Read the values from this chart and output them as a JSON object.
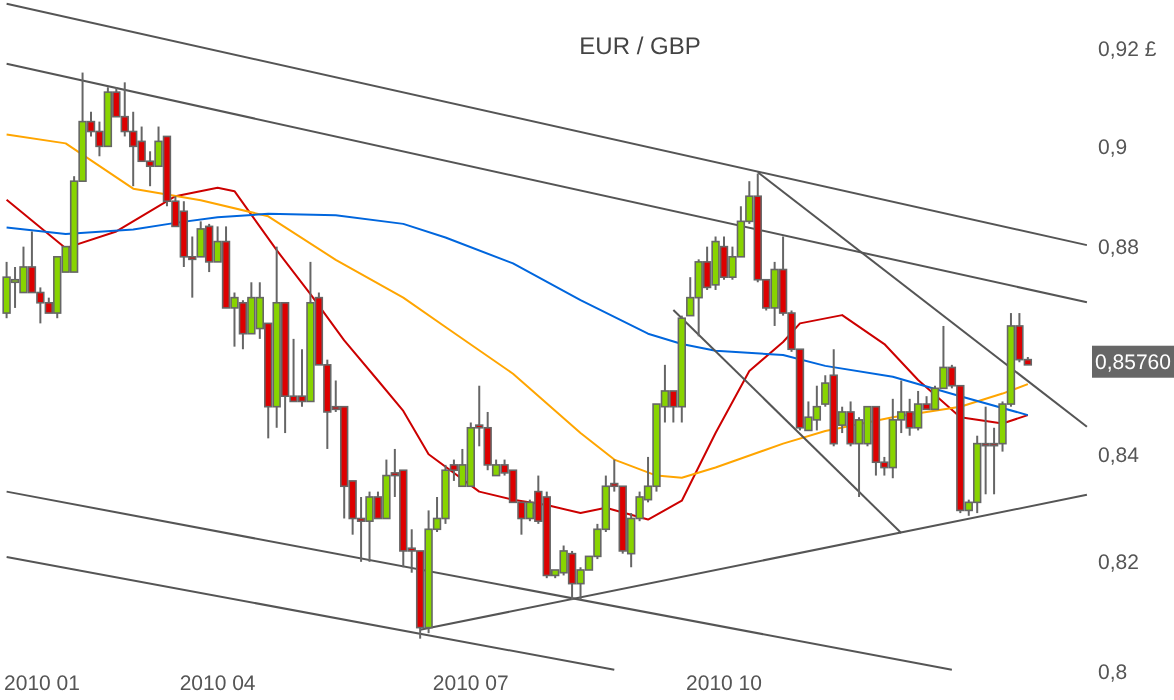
{
  "chart_data": {
    "type": "candlestick",
    "title": "EUR / GBP",
    "log": true,
    "categories": [
      null,
      null,
      null,
      null,
      "2010 01",
      null,
      null,
      null,
      null,
      null,
      null,
      null,
      null,
      null,
      null,
      null,
      null,
      null,
      null,
      null,
      null,
      null,
      null,
      null,
      null,
      "2010 04",
      null,
      null,
      null,
      null,
      null,
      null,
      null,
      null,
      null,
      null,
      null,
      null,
      null,
      null,
      null,
      null,
      null,
      null,
      null,
      null,
      null,
      null,
      null,
      null,
      null,
      null,
      null,
      null,
      null,
      "2010 07",
      null,
      null,
      null,
      null,
      null,
      null,
      null,
      null,
      null,
      null,
      null,
      null,
      null,
      null,
      null,
      null,
      null,
      null,
      null,
      null,
      null,
      null,
      null,
      null,
      null,
      null,
      null,
      null,
      null,
      "2010 10",
      null,
      null,
      null,
      null,
      null,
      null,
      null,
      null,
      null,
      null,
      null,
      null,
      null,
      null,
      null,
      null,
      null,
      null,
      null,
      null,
      null,
      null,
      null,
      null,
      null,
      null,
      null,
      null,
      null,
      null,
      null,
      null,
      null,
      null,
      null,
      null,
      null,
      null,
      null,
      null,
      null,
      null,
      null
    ],
    "ylim": [
      0.795,
      0.93
    ],
    "yticks": [
      {
        "value": 0.92,
        "label": "0,92 £"
      },
      {
        "value": 0.9,
        "label": "0,9"
      },
      {
        "value": 0.88,
        "label": "0,88"
      },
      {
        "value": 0.84,
        "label": "0,84"
      },
      {
        "value": 0.82,
        "label": "0,82"
      },
      {
        "value": 0.8,
        "label": "0,8"
      }
    ],
    "annotations": [
      {
        "text": "0,85760",
        "y": 0.8576
      }
    ],
    "ohlc": [
      [
        0.867,
        0.877,
        0.866,
        0.874
      ],
      [
        0.8735,
        0.876,
        0.868,
        0.873
      ],
      [
        0.871,
        0.88,
        0.871,
        0.876
      ],
      [
        0.876,
        0.883,
        0.871,
        0.871
      ],
      [
        0.871,
        0.872,
        0.865,
        0.869
      ],
      [
        0.869,
        0.87,
        0.867,
        0.867
      ],
      [
        0.867,
        0.878,
        0.866,
        0.878
      ],
      [
        0.875,
        0.88,
        0.875,
        0.88
      ],
      [
        0.875,
        0.894,
        0.875,
        0.893
      ],
      [
        0.893,
        0.915,
        0.893,
        0.905
      ],
      [
        0.905,
        0.907,
        0.902,
        0.903
      ],
      [
        0.903,
        0.905,
        0.898,
        0.9
      ],
      [
        0.9,
        0.912,
        0.9,
        0.911
      ],
      [
        0.911,
        0.912,
        0.906,
        0.906
      ],
      [
        0.906,
        0.913,
        0.902,
        0.903
      ],
      [
        0.903,
        0.907,
        0.892,
        0.9
      ],
      [
        0.901,
        0.904,
        0.897,
        0.897
      ],
      [
        0.897,
        0.899,
        0.892,
        0.896
      ],
      [
        0.896,
        0.904,
        0.896,
        0.901
      ],
      [
        0.902,
        0.902,
        0.888,
        0.889
      ],
      [
        0.889,
        0.89,
        0.884,
        0.884
      ],
      [
        0.887,
        0.889,
        0.876,
        0.878
      ],
      [
        0.878,
        0.882,
        0.87,
        0.8775
      ],
      [
        0.878,
        0.885,
        0.878,
        0.8835
      ],
      [
        0.884,
        0.8845,
        0.875,
        0.877
      ],
      [
        0.877,
        0.884,
        0.877,
        0.881
      ],
      [
        0.881,
        0.884,
        0.868,
        0.868
      ],
      [
        0.868,
        0.871,
        0.8605,
        0.87
      ],
      [
        0.869,
        0.8695,
        0.86,
        0.863
      ],
      [
        0.863,
        0.873,
        0.863,
        0.87
      ],
      [
        0.864,
        0.873,
        0.862,
        0.87
      ],
      [
        0.865,
        0.865,
        0.843,
        0.849
      ],
      [
        0.849,
        0.88,
        0.845,
        0.869
      ],
      [
        0.869,
        0.869,
        0.844,
        0.851
      ],
      [
        0.851,
        0.862,
        0.85,
        0.85
      ],
      [
        0.851,
        0.86,
        0.849,
        0.85
      ],
      [
        0.85,
        0.877,
        0.85,
        0.869
      ],
      [
        0.87,
        0.871,
        0.857,
        0.857
      ],
      [
        0.857,
        0.858,
        0.841,
        0.848
      ],
      [
        0.849,
        0.854,
        0.848,
        0.8485
      ],
      [
        0.849,
        0.849,
        0.828,
        0.834
      ],
      [
        0.835,
        0.835,
        0.825,
        0.828
      ],
      [
        0.828,
        0.832,
        0.82,
        0.8275
      ],
      [
        0.8275,
        0.833,
        0.82,
        0.832
      ],
      [
        0.832,
        0.833,
        0.828,
        0.828
      ],
      [
        0.828,
        0.839,
        0.828,
        0.836
      ],
      [
        0.8365,
        0.841,
        0.832,
        0.836
      ],
      [
        0.837,
        0.837,
        0.819,
        0.822
      ],
      [
        0.8225,
        0.826,
        0.818,
        0.822
      ],
      [
        0.822,
        0.822,
        0.806,
        0.808
      ],
      [
        0.808,
        0.8295,
        0.807,
        0.826
      ],
      [
        0.826,
        0.832,
        0.8255,
        0.828
      ],
      [
        0.828,
        0.838,
        0.827,
        0.837
      ],
      [
        0.838,
        0.839,
        0.835,
        0.837
      ],
      [
        0.834,
        0.841,
        0.834,
        0.838
      ],
      [
        0.834,
        0.846,
        0.834,
        0.845
      ],
      [
        0.8455,
        0.853,
        0.8415,
        0.845
      ],
      [
        0.845,
        0.848,
        0.837,
        0.838
      ],
      [
        0.836,
        0.839,
        0.836,
        0.838
      ],
      [
        0.838,
        0.839,
        0.836,
        0.8365
      ],
      [
        0.837,
        0.837,
        0.831,
        0.831
      ],
      [
        0.831,
        0.831,
        0.825,
        0.828
      ],
      [
        0.828,
        0.8315,
        0.8275,
        0.831
      ],
      [
        0.833,
        0.836,
        0.827,
        0.8275
      ],
      [
        0.832,
        0.833,
        0.817,
        0.8175
      ],
      [
        0.8175,
        0.8185,
        0.817,
        0.8185
      ],
      [
        0.818,
        0.823,
        0.8175,
        0.822
      ],
      [
        0.8215,
        0.822,
        0.813,
        0.816
      ],
      [
        0.816,
        0.819,
        0.813,
        0.8185
      ],
      [
        0.8185,
        0.821,
        0.8185,
        0.821
      ],
      [
        0.821,
        0.827,
        0.8205,
        0.826
      ],
      [
        0.826,
        0.836,
        0.8255,
        0.834
      ],
      [
        0.8345,
        0.839,
        0.833,
        0.834
      ],
      [
        0.834,
        0.834,
        0.8215,
        0.822
      ],
      [
        0.8215,
        0.829,
        0.819,
        0.828
      ],
      [
        0.828,
        0.833,
        0.8275,
        0.832
      ],
      [
        0.8315,
        0.8395,
        0.831,
        0.834
      ],
      [
        0.834,
        0.8495,
        0.833,
        0.8495
      ],
      [
        0.849,
        0.857,
        0.846,
        0.852
      ],
      [
        0.852,
        0.852,
        0.846,
        0.849
      ],
      [
        0.849,
        0.8665,
        0.846,
        0.866
      ],
      [
        0.8665,
        0.874,
        0.8665,
        0.87
      ],
      [
        0.87,
        0.8775,
        0.8625,
        0.877
      ],
      [
        0.877,
        0.88,
        0.8715,
        0.872
      ],
      [
        0.8725,
        0.882,
        0.8715,
        0.881
      ],
      [
        0.88,
        0.882,
        0.8735,
        0.874
      ],
      [
        0.874,
        0.88,
        0.8735,
        0.878
      ],
      [
        0.878,
        0.888,
        0.878,
        0.885
      ],
      [
        0.885,
        0.893,
        0.8845,
        0.89
      ],
      [
        0.89,
        0.8945,
        0.873,
        0.8735
      ],
      [
        0.8735,
        0.8735,
        0.8675,
        0.868
      ],
      [
        0.868,
        0.877,
        0.8645,
        0.8755
      ],
      [
        0.8755,
        0.882,
        0.8665,
        0.867
      ],
      [
        0.867,
        0.8675,
        0.8595,
        0.86
      ],
      [
        0.86,
        0.86,
        0.8445,
        0.845
      ],
      [
        0.8445,
        0.85,
        0.8445,
        0.847
      ],
      [
        0.8465,
        0.853,
        0.8445,
        0.849
      ],
      [
        0.8495,
        0.855,
        0.849,
        0.8535
      ],
      [
        0.855,
        0.86,
        0.8415,
        0.842
      ],
      [
        0.8455,
        0.849,
        0.844,
        0.848
      ],
      [
        0.848,
        0.85,
        0.8415,
        0.842
      ],
      [
        0.842,
        0.847,
        0.832,
        0.8465
      ],
      [
        0.842,
        0.849,
        0.8415,
        0.849
      ],
      [
        0.849,
        0.849,
        0.836,
        0.8385
      ],
      [
        0.8385,
        0.8395,
        0.836,
        0.8375
      ],
      [
        0.8375,
        0.8505,
        0.8355,
        0.8465
      ],
      [
        0.8465,
        0.854,
        0.844,
        0.848
      ],
      [
        0.848,
        0.8505,
        0.8435,
        0.845
      ],
      [
        0.845,
        0.852,
        0.8445,
        0.8495
      ],
      [
        0.8495,
        0.851,
        0.8485,
        0.8485
      ],
      [
        0.8485,
        0.853,
        0.8485,
        0.8525
      ],
      [
        0.8525,
        0.8645,
        0.8525,
        0.8565
      ],
      [
        0.8565,
        0.857,
        0.8525,
        0.853
      ],
      [
        0.853,
        0.853,
        0.829,
        0.8295
      ],
      [
        0.8295,
        0.8315,
        0.8285,
        0.831
      ],
      [
        0.831,
        0.8435,
        0.829,
        0.842
      ],
      [
        0.842,
        0.849,
        0.8325,
        0.8418
      ],
      [
        0.842,
        0.845,
        0.8325,
        0.8418
      ],
      [
        0.842,
        0.85,
        0.8405,
        0.8495
      ],
      [
        0.8495,
        0.867,
        0.849,
        0.8645
      ],
      [
        0.8645,
        0.867,
        0.8575,
        0.858
      ],
      [
        0.858,
        0.8585,
        0.857,
        0.857
      ],
      null,
      null,
      null,
      null,
      null,
      null,
      null
    ],
    "colors": [
      "#88d400",
      "#88d400",
      "#88d400",
      "#dd0000",
      "#dd0000",
      "#dd0000",
      "#88d400",
      "#88d400",
      "#88d400",
      "#88d400",
      "#dd0000",
      "#dd0000",
      "#88d400",
      "#dd0000",
      "#dd0000",
      "#dd0000",
      "#dd0000",
      "#dd0000",
      "#88d400",
      "#dd0000",
      "#dd0000",
      "#dd0000",
      "#dd0000",
      "#88d400",
      "#dd0000",
      "#88d400",
      "#dd0000",
      "#88d400",
      "#dd0000",
      "#88d400",
      "#88d400",
      "#dd0000",
      "#88d400",
      "#dd0000",
      "#dd0000",
      "#dd0000",
      "#88d400",
      "#dd0000",
      "#dd0000",
      "#dd0000",
      "#dd0000",
      "#dd0000",
      "#dd0000",
      "#88d400",
      "#dd0000",
      "#88d400",
      "#dd0000",
      "#dd0000",
      "#dd0000",
      "#dd0000",
      "#88d400",
      "#88d400",
      "#88d400",
      "#dd0000",
      "#88d400",
      "#88d400",
      "#dd0000",
      "#dd0000",
      "#88d400",
      "#dd0000",
      "#dd0000",
      "#dd0000",
      "#88d400",
      "#dd0000",
      "#dd0000",
      "#88d400",
      "#88d400",
      "#dd0000",
      "#88d400",
      "#88d400",
      "#88d400",
      "#88d400",
      "#dd0000",
      "#dd0000",
      "#88d400",
      "#88d400",
      "#88d400",
      "#88d400",
      "#88d400",
      "#dd0000",
      "#88d400",
      "#88d400",
      "#88d400",
      "#dd0000",
      "#88d400",
      "#dd0000",
      "#88d400",
      "#88d400",
      "#88d400",
      "#dd0000",
      "#dd0000",
      "#88d400",
      "#dd0000",
      "#dd0000",
      "#dd0000",
      "#88d400",
      "#88d400",
      "#88d400",
      "#dd0000",
      "#88d400",
      "#dd0000",
      "#88d400",
      "#88d400",
      "#dd0000",
      "#dd0000",
      "#88d400",
      "#88d400",
      "#dd0000",
      "#88d400",
      "#dd0000",
      "#88d400",
      "#88d400",
      "#dd0000",
      "#dd0000",
      "#88d400",
      "#88d400",
      "#dd0000",
      "#dd0000",
      "#88d400",
      "#88d400",
      "#dd0000",
      "#dd0000",
      null,
      null,
      null,
      null,
      null,
      null,
      null
    ],
    "series": [
      {
        "type": "line",
        "color": "#cc0000",
        "values": [
          0.8893,
          null,
          null,
          null,
          null,
          null,
          null,
          0.8797,
          null,
          null,
          null,
          null,
          null,
          0.883,
          null,
          null,
          null,
          null,
          null,
          null,
          0.89,
          null,
          null,
          null,
          null,
          0.8917,
          null,
          0.891,
          null,
          null,
          null,
          null,
          0.8793,
          null,
          null,
          null,
          0.8707,
          null,
          null,
          null,
          0.8617,
          null,
          null,
          null,
          0.854,
          null,
          null,
          0.8482,
          null,
          null,
          0.84,
          null,
          null,
          null,
          null,
          null,
          0.833,
          null,
          null,
          null,
          0.8315,
          null,
          null,
          null,
          0.8305,
          null,
          null,
          null,
          0.829,
          null,
          null,
          0.83,
          null,
          null,
          null,
          null,
          0.8278,
          null,
          null,
          null,
          0.8313,
          null,
          null,
          null,
          0.844,
          null,
          null,
          null,
          0.8558,
          null,
          null,
          null,
          0.8614,
          null,
          0.865,
          null,
          null,
          null,
          null,
          0.8666,
          null,
          null,
          null,
          null,
          0.861,
          null,
          null,
          null,
          0.8541,
          null,
          null,
          null,
          null,
          0.847,
          null,
          null,
          null,
          null,
          0.8458,
          null,
          null,
          0.8474,
          null,
          null,
          null,
          null,
          null,
          null,
          null
        ]
      },
      {
        "type": "line",
        "color": "#ffa500",
        "values": [
          0.9024,
          null,
          null,
          null,
          null,
          null,
          null,
          0.9006,
          null,
          null,
          null,
          null,
          null,
          null,
          null,
          0.8915,
          null,
          null,
          null,
          null,
          null,
          null,
          null,
          0.8892,
          null,
          null,
          null,
          null,
          null,
          null,
          null,
          0.886,
          null,
          null,
          null,
          null,
          null,
          null,
          null,
          0.8774,
          null,
          null,
          null,
          null,
          null,
          null,
          null,
          0.87,
          null,
          null,
          null,
          null,
          0.8643,
          null,
          null,
          null,
          null,
          null,
          null,
          null,
          0.8553,
          null,
          null,
          null,
          null,
          null,
          null,
          null,
          0.844,
          null,
          null,
          null,
          0.839,
          null,
          null,
          null,
          null,
          0.836,
          null,
          null,
          0.8356,
          null,
          null,
          null,
          0.8375,
          null,
          null,
          null,
          null,
          null,
          null,
          null,
          0.842,
          null,
          null,
          null,
          null,
          0.8444,
          null,
          null,
          null,
          null,
          null,
          null,
          null,
          0.847,
          null,
          null,
          null,
          null,
          null,
          null,
          null,
          0.849,
          null,
          null,
          null,
          null,
          0.8515,
          null,
          null,
          0.8533,
          null,
          null,
          null,
          null,
          null,
          null,
          null
        ]
      },
      {
        "type": "line",
        "color": "#0066dd",
        "values": [
          0.8838,
          null,
          null,
          null,
          null,
          null,
          null,
          0.8825,
          null,
          null,
          null,
          null,
          null,
          null,
          null,
          0.8834,
          null,
          null,
          null,
          null,
          0.8847,
          null,
          null,
          null,
          null,
          0.8858,
          null,
          null,
          null,
          null,
          null,
          0.8865,
          null,
          null,
          null,
          null,
          null,
          null,
          null,
          0.8862,
          null,
          null,
          null,
          null,
          null,
          null,
          null,
          0.8845,
          null,
          null,
          null,
          null,
          0.8818,
          null,
          null,
          null,
          null,
          null,
          null,
          null,
          0.8767,
          null,
          null,
          null,
          null,
          null,
          null,
          null,
          0.8695,
          null,
          null,
          null,
          null,
          null,
          null,
          null,
          0.863,
          null,
          null,
          null,
          0.861,
          null,
          null,
          null,
          0.8597,
          null,
          null,
          null,
          null,
          null,
          null,
          null,
          0.8589,
          null,
          null,
          null,
          null,
          0.8568,
          null,
          null,
          null,
          null,
          null,
          null,
          null,
          0.8547,
          null,
          null,
          null,
          null,
          null,
          null,
          null,
          0.851,
          null,
          null,
          null,
          null,
          null,
          null,
          null,
          0.8474,
          null,
          null,
          null,
          null,
          null,
          null,
          null
        ]
      },
      {
        "type": "line",
        "color": "#555555",
        "values": [
          0.9292,
          null,
          null,
          null,
          null,
          null,
          null,
          null,
          null,
          null,
          null,
          null,
          null,
          null,
          null,
          null,
          null,
          null,
          null,
          null,
          null,
          null,
          null,
          null,
          null,
          null,
          null,
          null,
          null,
          null,
          null,
          null,
          null,
          null,
          null,
          null,
          null,
          null,
          null,
          null,
          null,
          null,
          null,
          null,
          null,
          null,
          null,
          null,
          null,
          null,
          null,
          null,
          null,
          null,
          null,
          null,
          null,
          null,
          null,
          null,
          null,
          null,
          null,
          null,
          null,
          null,
          null,
          null,
          null,
          null,
          null,
          null,
          null,
          null,
          null,
          null,
          null,
          null,
          null,
          null,
          null,
          null,
          null,
          null,
          null,
          null,
          null,
          null,
          null,
          null,
          null,
          null,
          null,
          null,
          null,
          null,
          null,
          null,
          null,
          null,
          null,
          null,
          null,
          null,
          null,
          null,
          null,
          null,
          null,
          null,
          null,
          null,
          null,
          null,
          null,
          null,
          null,
          null,
          null,
          null,
          null,
          null,
          null,
          null,
          null,
          null,
          null,
          null,
          0.8803
        ]
      },
      {
        "type": "line",
        "color": "#555555",
        "values": [
          0.9168,
          null,
          null,
          null,
          null,
          null,
          null,
          null,
          null,
          null,
          null,
          null,
          null,
          null,
          null,
          null,
          null,
          null,
          null,
          null,
          null,
          null,
          null,
          null,
          null,
          null,
          null,
          null,
          null,
          null,
          null,
          null,
          null,
          null,
          null,
          null,
          null,
          null,
          null,
          null,
          null,
          null,
          null,
          null,
          null,
          null,
          null,
          null,
          null,
          null,
          null,
          null,
          null,
          null,
          null,
          null,
          null,
          null,
          null,
          null,
          null,
          null,
          null,
          null,
          null,
          null,
          null,
          null,
          null,
          null,
          null,
          null,
          null,
          null,
          null,
          null,
          null,
          null,
          null,
          null,
          null,
          null,
          null,
          null,
          null,
          null,
          null,
          null,
          null,
          null,
          null,
          null,
          null,
          null,
          null,
          null,
          null,
          null,
          null,
          null,
          null,
          null,
          null,
          null,
          null,
          null,
          null,
          null,
          null,
          null,
          null,
          null,
          null,
          null,
          null,
          null,
          null,
          null,
          null,
          null,
          null,
          null,
          null,
          null,
          null,
          null,
          null,
          null,
          0.8691
        ]
      },
      {
        "type": "line",
        "color": "#555555",
        "values": [
          0.833,
          null,
          null,
          null,
          null,
          null,
          null,
          null,
          null,
          null,
          null,
          null,
          null,
          null,
          null,
          null,
          null,
          null,
          null,
          null,
          null,
          null,
          null,
          null,
          null,
          null,
          null,
          null,
          null,
          null,
          null,
          null,
          null,
          null,
          null,
          null,
          null,
          null,
          null,
          null,
          null,
          null,
          null,
          null,
          null,
          null,
          null,
          null,
          null,
          null,
          null,
          null,
          null,
          null,
          null,
          null,
          null,
          null,
          null,
          null,
          null,
          null,
          null,
          null,
          null,
          null,
          null,
          null,
          null,
          null,
          null,
          null,
          null,
          null,
          null,
          null,
          null,
          null,
          null,
          null,
          null,
          null,
          null,
          null,
          null,
          null,
          null,
          null,
          null,
          null,
          null,
          null,
          null,
          null,
          null,
          null,
          null,
          null,
          null,
          null,
          null,
          null,
          null,
          null,
          null,
          null,
          null,
          null,
          null,
          null,
          null,
          null,
          0.8004,
          null,
          null,
          null,
          null,
          null,
          null,
          null,
          null,
          null,
          null,
          null,
          null,
          null,
          null,
          null,
          null
        ]
      },
      {
        "type": "line",
        "color": "#555555",
        "values": [
          0.8209,
          null,
          null,
          null,
          null,
          null,
          null,
          null,
          null,
          null,
          null,
          null,
          null,
          null,
          null,
          null,
          null,
          null,
          null,
          null,
          null,
          null,
          null,
          null,
          null,
          null,
          null,
          null,
          null,
          null,
          null,
          null,
          null,
          null,
          null,
          null,
          null,
          null,
          null,
          null,
          null,
          null,
          null,
          null,
          null,
          null,
          null,
          null,
          null,
          null,
          null,
          null,
          null,
          null,
          null,
          null,
          null,
          null,
          null,
          null,
          null,
          null,
          null,
          null,
          null,
          null,
          null,
          null,
          null,
          null,
          null,
          null,
          0.8004,
          null,
          null,
          null,
          null,
          null,
          null,
          null,
          null,
          null,
          null,
          null,
          null,
          null,
          null,
          null,
          null,
          null,
          null,
          null,
          null,
          null,
          null,
          null,
          null,
          null,
          null,
          null,
          null,
          null,
          null,
          null,
          null,
          null,
          null,
          null,
          null,
          null,
          null,
          null,
          null,
          null,
          null,
          null,
          null,
          null,
          null,
          null,
          null,
          null,
          null,
          null,
          null,
          null,
          null,
          null,
          null
        ]
      },
      {
        "type": "line",
        "color": "#555555",
        "values": [
          null,
          null,
          null,
          null,
          null,
          null,
          null,
          null,
          null,
          null,
          null,
          null,
          null,
          null,
          null,
          null,
          null,
          null,
          null,
          null,
          null,
          null,
          null,
          null,
          null,
          null,
          null,
          null,
          null,
          null,
          null,
          null,
          null,
          null,
          null,
          null,
          null,
          null,
          null,
          null,
          null,
          null,
          null,
          null,
          null,
          null,
          null,
          null,
          null,
          0.8076,
          null,
          null,
          null,
          null,
          null,
          null,
          null,
          null,
          null,
          null,
          null,
          null,
          null,
          null,
          null,
          null,
          null,
          null,
          null,
          null,
          null,
          null,
          null,
          null,
          null,
          null,
          null,
          null,
          null,
          null,
          null,
          null,
          null,
          null,
          null,
          null,
          null,
          null,
          null,
          null,
          null,
          null,
          null,
          null,
          null,
          null,
          null,
          null,
          null,
          null,
          null,
          null,
          null,
          null,
          null,
          null,
          null,
          null,
          null,
          null,
          null,
          null,
          null,
          null,
          null,
          null,
          null,
          null,
          null,
          null,
          null,
          null,
          null,
          null,
          null,
          null,
          null,
          null,
          0.8324
        ]
      },
      {
        "type": "line",
        "color": "#555555",
        "values": [
          null,
          null,
          null,
          null,
          null,
          null,
          null,
          null,
          null,
          null,
          null,
          null,
          null,
          null,
          null,
          null,
          null,
          null,
          null,
          null,
          null,
          null,
          null,
          null,
          null,
          null,
          null,
          null,
          null,
          null,
          null,
          null,
          null,
          null,
          null,
          null,
          null,
          null,
          null,
          null,
          null,
          null,
          null,
          null,
          null,
          null,
          null,
          null,
          null,
          null,
          null,
          null,
          null,
          null,
          null,
          null,
          null,
          null,
          null,
          null,
          null,
          null,
          null,
          null,
          null,
          null,
          null,
          null,
          null,
          null,
          null,
          null,
          null,
          null,
          null,
          null,
          null,
          null,
          null,
          null,
          null,
          null,
          null,
          null,
          null,
          null,
          null,
          null,
          null,
          0.8948,
          null,
          null,
          null,
          null,
          null,
          null,
          null,
          null,
          null,
          null,
          null,
          null,
          null,
          null,
          null,
          null,
          null,
          null,
          null,
          null,
          null,
          null,
          null,
          null,
          null,
          null,
          null,
          null,
          null,
          null,
          null,
          null,
          null,
          null,
          null,
          null,
          null,
          null,
          0.8452
        ]
      },
      {
        "type": "line",
        "color": "#555555",
        "values": [
          null,
          null,
          null,
          null,
          null,
          null,
          null,
          null,
          null,
          null,
          null,
          null,
          null,
          null,
          null,
          null,
          null,
          null,
          null,
          null,
          null,
          null,
          null,
          null,
          null,
          null,
          null,
          null,
          null,
          null,
          null,
          null,
          null,
          null,
          null,
          null,
          null,
          null,
          null,
          null,
          null,
          null,
          null,
          null,
          null,
          null,
          null,
          null,
          null,
          null,
          null,
          null,
          null,
          null,
          null,
          null,
          null,
          null,
          null,
          null,
          null,
          null,
          null,
          null,
          null,
          null,
          null,
          null,
          null,
          null,
          null,
          null,
          null,
          null,
          null,
          null,
          null,
          null,
          null,
          0.8676,
          null,
          null,
          null,
          null,
          null,
          null,
          null,
          null,
          null,
          null,
          null,
          null,
          null,
          null,
          null,
          null,
          null,
          null,
          null,
          null,
          null,
          null,
          null,
          null,
          null,
          null,
          0.8253,
          null,
          null,
          null,
          null,
          null,
          null,
          null,
          null,
          null,
          null,
          null,
          null,
          null,
          null,
          null,
          null,
          null,
          null,
          null,
          null,
          null,
          null
        ]
      }
    ]
  }
}
